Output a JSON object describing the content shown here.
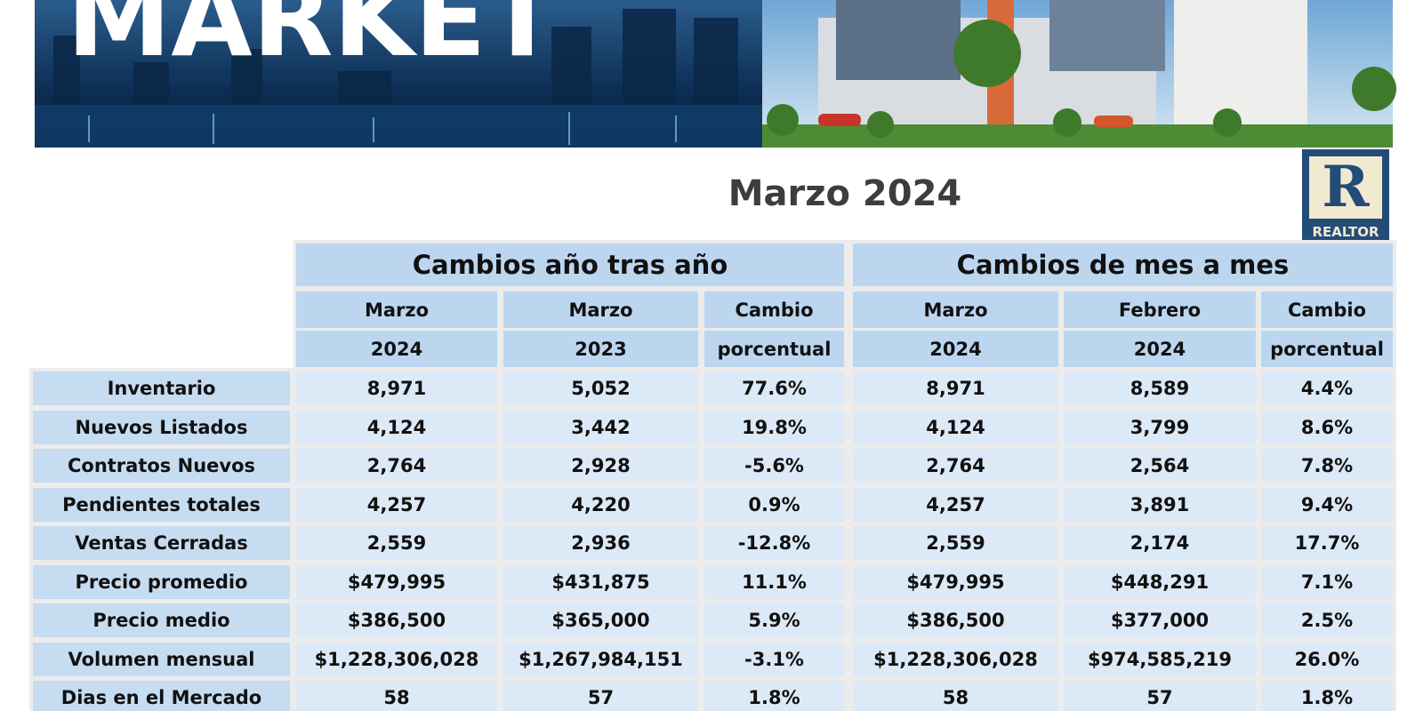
{
  "banner": {
    "title": "MARKET"
  },
  "logo": {
    "mark": "R",
    "label": "REALTOR"
  },
  "title": "Marzo 2024",
  "table": {
    "groups": [
      "Cambios año tras año",
      "Cambios de mes a mes"
    ],
    "columns": [
      [
        "Marzo",
        "2024"
      ],
      [
        "Marzo",
        "2023"
      ],
      [
        "Cambio",
        "porcentual"
      ],
      [
        "Marzo",
        "2024"
      ],
      [
        "Febrero",
        "2024"
      ],
      [
        "Cambio",
        "porcentual"
      ]
    ],
    "rows": [
      {
        "label": "Inventario",
        "values": [
          "8,971",
          "5,052",
          "77.6%",
          "8,971",
          "8,589",
          "4.4%"
        ]
      },
      {
        "label": "Nuevos Listados",
        "values": [
          "4,124",
          "3,442",
          "19.8%",
          "4,124",
          "3,799",
          "8.6%"
        ]
      },
      {
        "label": "Contratos Nuevos",
        "values": [
          "2,764",
          "2,928",
          "-5.6%",
          "2,764",
          "2,564",
          "7.8%"
        ]
      },
      {
        "label": "Pendientes totales",
        "values": [
          "4,257",
          "4,220",
          "0.9%",
          "4,257",
          "3,891",
          "9.4%"
        ]
      },
      {
        "label": "Ventas Cerradas",
        "values": [
          "2,559",
          "2,936",
          "-12.8%",
          "2,559",
          "2,174",
          "17.7%"
        ]
      },
      {
        "label": "Precio promedio",
        "values": [
          "$479,995",
          "$431,875",
          "11.1%",
          "$479,995",
          "$448,291",
          "7.1%"
        ]
      },
      {
        "label": "Precio medio",
        "values": [
          "$386,500",
          "$365,000",
          "5.9%",
          "$386,500",
          "$377,000",
          "2.5%"
        ]
      },
      {
        "label": "Volumen mensual",
        "values": [
          "$1,228,306,028",
          "$1,267,984,151",
          "-3.1%",
          "$1,228,306,028",
          "$974,585,219",
          "26.0%"
        ]
      },
      {
        "label": "Dias en el Mercado",
        "values": [
          "58",
          "57",
          "1.8%",
          "58",
          "57",
          "1.8%"
        ]
      }
    ]
  }
}
